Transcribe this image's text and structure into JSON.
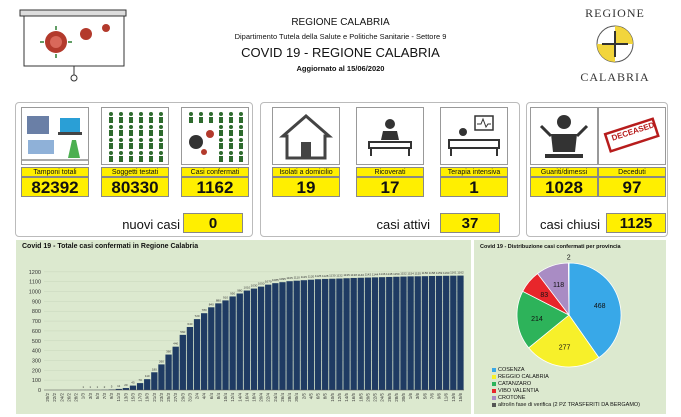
{
  "header": {
    "region": "REGIONE CALABRIA",
    "department": "Dipartimento Tutela della Salute e Politiche Sanitarie - Settore 9",
    "title": "COVID 19 - REGIONE CALABRIA",
    "updated": "Aggiornato al  15/06/2020"
  },
  "logo": {
    "top": "REGIONE",
    "bottom": "CALABRIA"
  },
  "cards": [
    {
      "label": "Tamponi totali",
      "value": "82392"
    },
    {
      "label": "Soggetti testati",
      "value": "80330"
    },
    {
      "label": "Casi confermati",
      "value": "1162"
    },
    {
      "label": "Isolati a domicilio",
      "value": "19"
    },
    {
      "label": "Ricoverati",
      "value": "17"
    },
    {
      "label": "Terapia intensiva",
      "value": "1"
    },
    {
      "label": "Guariti/dimessi",
      "value": "1028"
    },
    {
      "label": "Deceduti",
      "value": "97"
    }
  ],
  "deceased_stamp": "DECEASED",
  "summary": [
    {
      "label": "nuovi casi",
      "value": "0"
    },
    {
      "label": "casi attivi",
      "value": "37"
    },
    {
      "label": "casi chiusi",
      "value": "1125"
    }
  ],
  "bar_chart": {
    "title": "Covid 19 - Totale casi confermati in Regione Calabria",
    "yticks": [
      "0",
      "100",
      "200",
      "300",
      "400",
      "500",
      "600",
      "700",
      "800",
      "900",
      "1000",
      "1100",
      "1200"
    ]
  },
  "pie_chart": {
    "title": "Covid 19 - Distribuzione casi confermati per provincia",
    "legend": [
      "COSENZA",
      "REGGIO CALABRIA",
      "CATANZARO",
      "VIBO VALENTIA",
      "CROTONE",
      "altro/in fase di verifica (2 PZ TRASFERITI DA BERGAMO)"
    ]
  },
  "chart_data": [
    {
      "type": "bar",
      "title": "Covid 19 - Totale casi confermati in Regione Calabria",
      "xlabel": "",
      "ylabel": "",
      "ylim": [
        0,
        1300
      ],
      "grid": true,
      "categories": [
        "20/2",
        "22/2",
        "24/2",
        "26/2",
        "28/2",
        "1/3",
        "3/3",
        "5/3",
        "7/3",
        "9/3",
        "11/3",
        "13/3",
        "15/3",
        "17/3",
        "19/3",
        "21/3",
        "23/3",
        "25/3",
        "27/3",
        "29/3",
        "31/3",
        "2/4",
        "4/4",
        "6/4",
        "8/4",
        "10/4",
        "12/4",
        "14/4",
        "16/4",
        "18/4",
        "20/4",
        "22/4",
        "24/4",
        "26/4",
        "28/4",
        "30/4",
        "2/5",
        "4/5",
        "6/5",
        "8/5",
        "10/5",
        "12/5",
        "14/5",
        "16/5",
        "18/5",
        "20/5",
        "22/5",
        "24/5",
        "26/5",
        "28/5",
        "30/5",
        "1/6",
        "3/6",
        "5/6",
        "7/6",
        "9/6",
        "11/6",
        "13/6",
        "15/6"
      ],
      "values": [
        0,
        0,
        0,
        0,
        0,
        1,
        1,
        1,
        2,
        5,
        11,
        20,
        45,
        70,
        110,
        180,
        260,
        360,
        440,
        560,
        640,
        720,
        780,
        840,
        880,
        910,
        950,
        980,
        1010,
        1030,
        1050,
        1070,
        1085,
        1095,
        1105,
        1110,
        1115,
        1120,
        1125,
        1128,
        1130,
        1132,
        1135,
        1138,
        1140,
        1142,
        1144,
        1146,
        1148,
        1150,
        1152,
        1154,
        1155,
        1156,
        1158,
        1159,
        1160,
        1161,
        1162
      ]
    },
    {
      "type": "pie",
      "title": "Covid 19 - Distribuzione casi confermati per provincia",
      "categories": [
        "COSENZA",
        "REGGIO CALABRIA",
        "CATANZARO",
        "VIBO VALENTIA",
        "CROTONE",
        "altro/in fase di verifica (2 PZ TRASFERITI DA BERGAMO)"
      ],
      "values": [
        468,
        277,
        214,
        83,
        118,
        2
      ],
      "colors": [
        "#38a8e8",
        "#f7f02a",
        "#2db35a",
        "#e8262b",
        "#a98cc4",
        "#555555"
      ]
    }
  ]
}
